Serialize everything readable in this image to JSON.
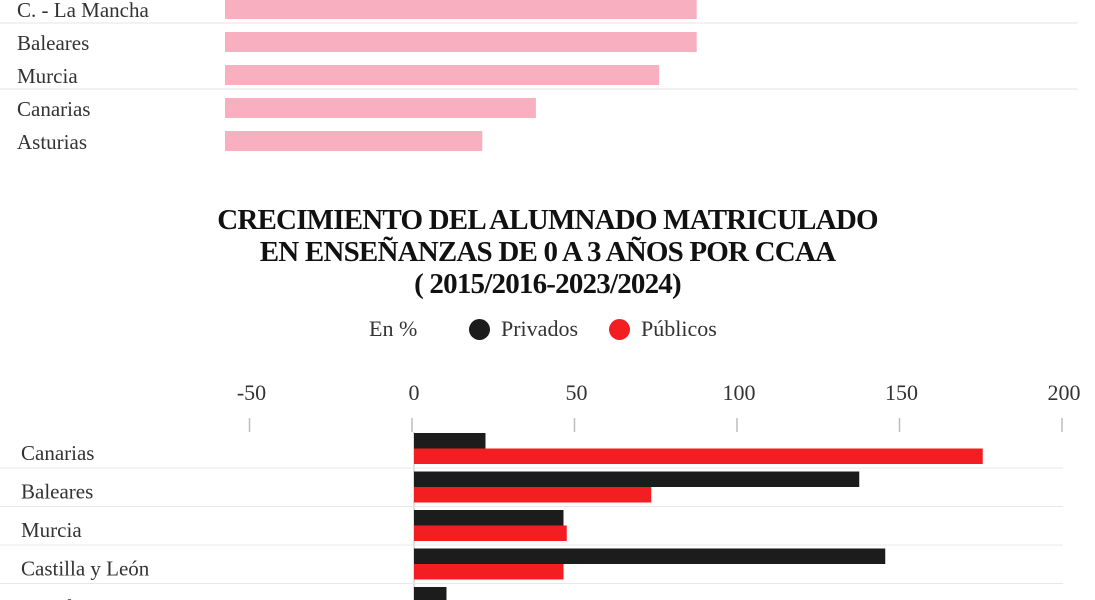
{
  "top_chart": {
    "categories": [
      "C. - La Mancha",
      "Baleares",
      "Murcia",
      "Canarias",
      "Asturias"
    ],
    "values": [
      88,
      88,
      81,
      58,
      48
    ],
    "xlim": [
      -50,
      200
    ],
    "bar_color": "#f8afc0"
  },
  "title_lines": [
    "CRECIMIENTO DEL ALUMNADO MATRICULADO",
    "EN ENSEÑANZAS DE 0 A 3 AÑOS POR CCAA",
    "( 2015/2016-2023/2024)"
  ],
  "legend": {
    "unit": "En %",
    "items": [
      {
        "label": "Privados",
        "color": "#1c1c1c"
      },
      {
        "label": "Públicos",
        "color": "#f21e22"
      }
    ]
  },
  "chart_data": [
    {
      "type": "bar",
      "orientation": "horizontal",
      "categories": [
        "C. - La Mancha",
        "Baleares",
        "Murcia",
        "Canarias",
        "Asturias"
      ],
      "values": [
        88,
        88,
        81,
        58,
        48
      ],
      "xlim": [
        -50,
        200
      ]
    },
    {
      "type": "bar",
      "orientation": "horizontal",
      "title": "CRECIMIENTO DEL ALUMNADO MATRICULADO EN ENSEÑANZAS DE 0 A 3 AÑOS POR CCAA ( 2015/2016-2023/2024)",
      "unit": "En %",
      "xlim": [
        -50,
        200
      ],
      "xticks": [
        -50,
        0,
        50,
        100,
        150,
        200
      ],
      "categories": [
        "Canarias",
        "Baleares",
        "Murcia",
        "Castilla y León",
        "C. Valenciana"
      ],
      "series": [
        {
          "name": "Privados",
          "color": "#1c1c1c",
          "values": [
            22,
            137,
            46,
            145,
            10
          ]
        },
        {
          "name": "Públicos",
          "color": "#f21e22",
          "values": [
            175,
            73,
            47,
            46,
            null
          ]
        }
      ],
      "legend": "top",
      "grid": false
    }
  ]
}
